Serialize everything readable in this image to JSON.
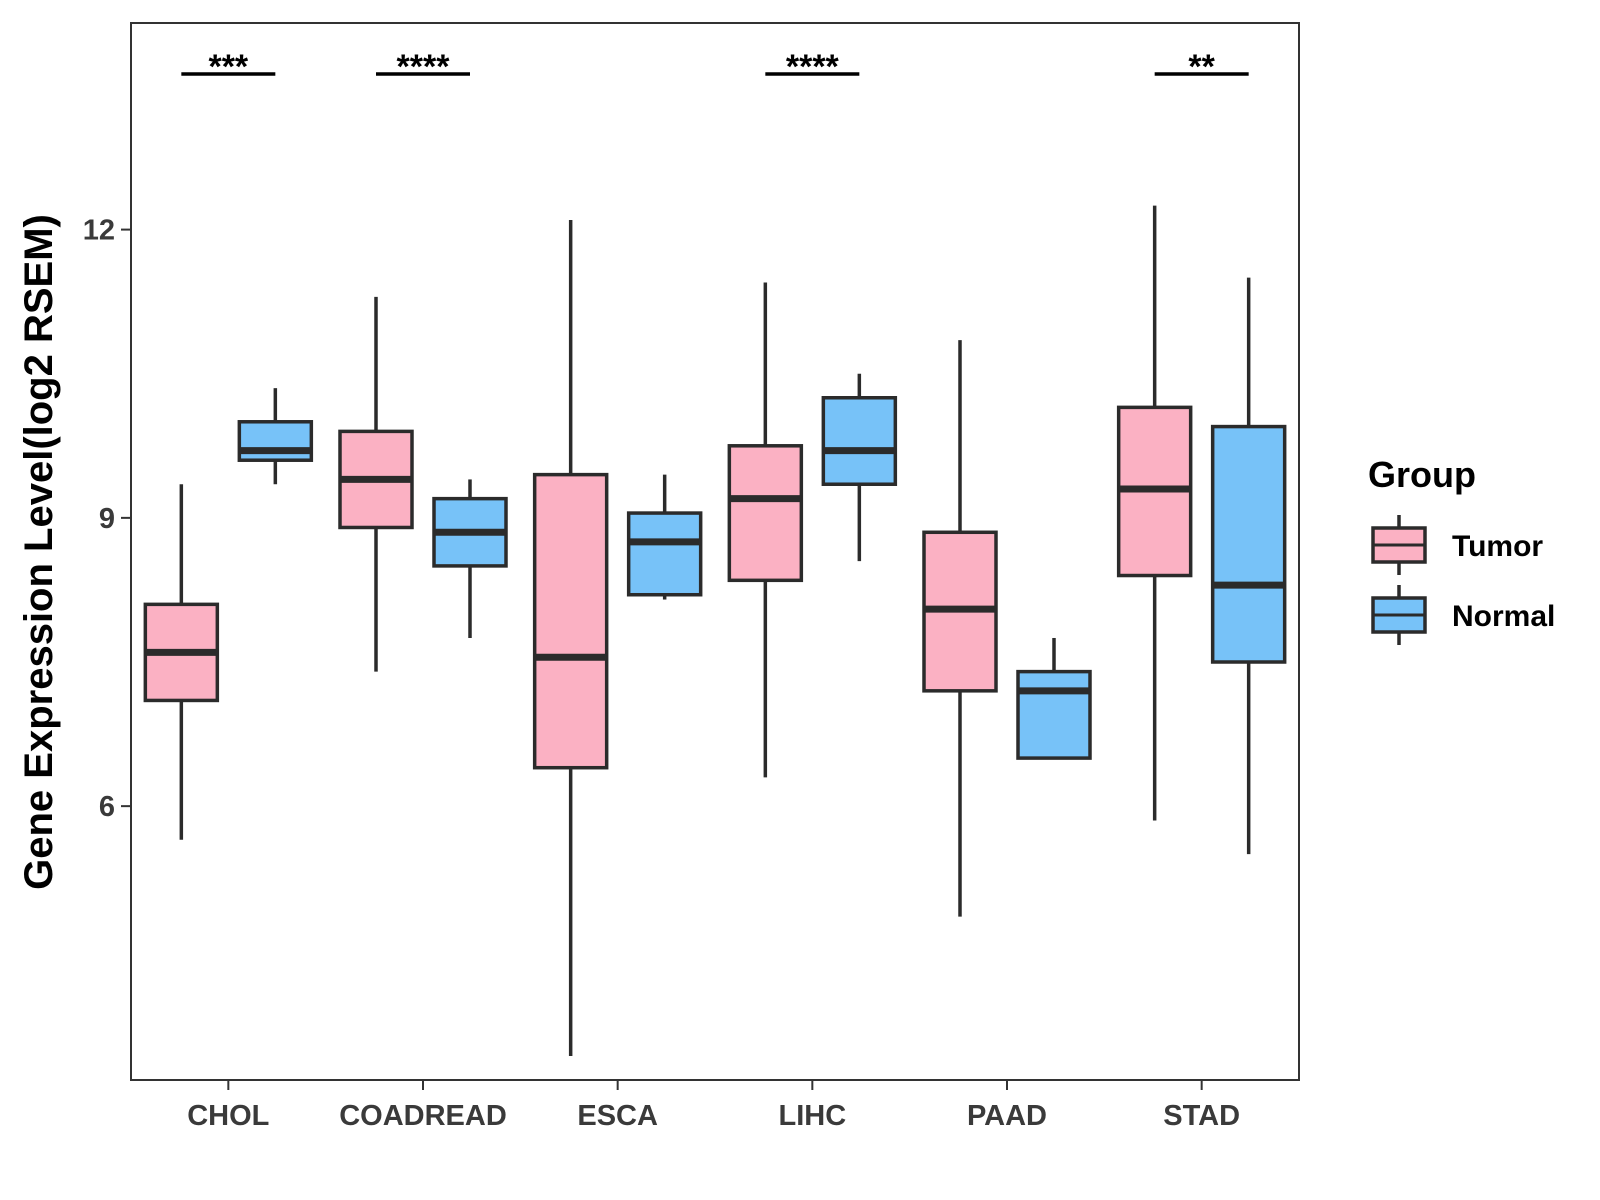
{
  "chart_data": {
    "type": "boxplot",
    "title": "",
    "xlabel": "",
    "ylabel": "Gene Expression Level(log2 RSEM)",
    "ylim": [
      3.15,
      14.15
    ],
    "yticks": [
      6,
      9,
      12
    ],
    "grid": false,
    "categories": [
      "CHOL",
      "COADREAD",
      "ESCA",
      "LIHC",
      "PAAD",
      "STAD"
    ],
    "series": [
      {
        "name": "Tumor",
        "color": "#fbb1c3",
        "boxes": [
          {
            "min": 5.65,
            "q1": 7.1,
            "median": 7.6,
            "q3": 8.1,
            "max": 9.35
          },
          {
            "min": 7.4,
            "q1": 8.9,
            "median": 9.4,
            "q3": 9.9,
            "max": 11.3
          },
          {
            "min": 3.4,
            "q1": 6.4,
            "median": 7.55,
            "q3": 9.45,
            "max": 12.1
          },
          {
            "min": 6.3,
            "q1": 8.35,
            "median": 9.2,
            "q3": 9.75,
            "max": 11.45
          },
          {
            "min": 4.85,
            "q1": 7.2,
            "median": 8.05,
            "q3": 8.85,
            "max": 10.85
          },
          {
            "min": 5.85,
            "q1": 8.4,
            "median": 9.3,
            "q3": 10.15,
            "max": 12.25
          }
        ]
      },
      {
        "name": "Normal",
        "color": "#77c2f8",
        "boxes": [
          {
            "min": 9.35,
            "q1": 9.6,
            "median": 9.7,
            "q3": 10.0,
            "max": 10.35
          },
          {
            "min": 7.75,
            "q1": 8.5,
            "median": 8.85,
            "q3": 9.2,
            "max": 9.4
          },
          {
            "min": 8.15,
            "q1": 8.2,
            "median": 8.75,
            "q3": 9.05,
            "max": 9.45
          },
          {
            "min": 8.55,
            "q1": 9.35,
            "median": 9.7,
            "q3": 10.25,
            "max": 10.5
          },
          {
            "min": 6.5,
            "q1": 6.5,
            "median": 7.2,
            "q3": 7.4,
            "max": 7.75
          },
          {
            "min": 5.5,
            "q1": 7.5,
            "median": 8.3,
            "q3": 9.95,
            "max": 11.5
          }
        ]
      }
    ],
    "significance": [
      "***",
      "****",
      "",
      "****",
      "",
      "**"
    ],
    "legend": {
      "title": "Group",
      "position": "right",
      "entries": [
        "Tumor",
        "Normal"
      ]
    }
  }
}
